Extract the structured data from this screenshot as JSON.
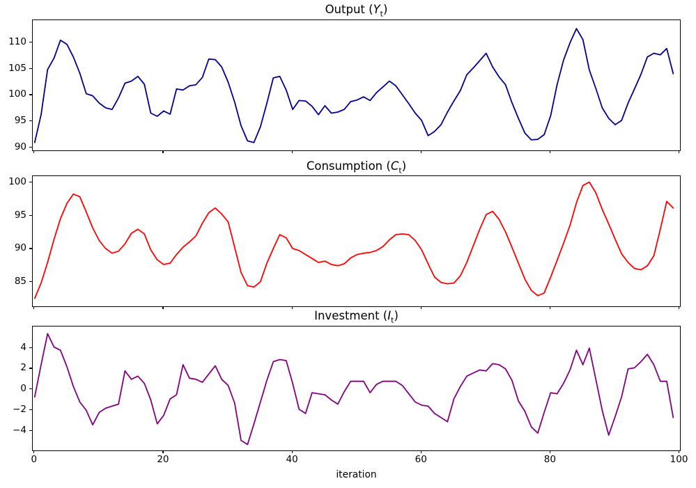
{
  "figure": {
    "background": "#ffffff",
    "spine_color": "#000000",
    "tick_color": "#000000"
  },
  "xlabel": "iteration",
  "chart_data": [
    {
      "type": "line",
      "title_parts": {
        "prefix": "Output (",
        "var": "Y",
        "sub": "t",
        "suffix": ")"
      },
      "color": "#00008b",
      "line_width": 1.8,
      "x_range": [
        0,
        99
      ],
      "xlim": [
        -0.3,
        100.05
      ],
      "ylim": [
        89.5,
        114.3
      ],
      "yticks": [
        90,
        95,
        100,
        105,
        110
      ],
      "ytick_labels": [
        "90",
        "95",
        "100",
        "105",
        "110"
      ],
      "xticks": [
        0,
        20,
        40,
        60,
        80,
        100
      ],
      "xtick_labels": [],
      "grid": false,
      "values": [
        91.0,
        96.3,
        104.9,
        107.1,
        110.5,
        109.7,
        107.3,
        104.2,
        100.3,
        99.9,
        98.5,
        97.6,
        97.3,
        99.5,
        102.3,
        102.7,
        103.6,
        102.1,
        96.6,
        96.0,
        97.0,
        96.4,
        101.2,
        101.0,
        101.8,
        102.0,
        103.4,
        106.9,
        106.8,
        105.4,
        102.5,
        98.7,
        94.2,
        91.3,
        91.0,
        94.0,
        98.5,
        103.3,
        103.6,
        101.0,
        97.3,
        99.0,
        98.9,
        97.9,
        96.3,
        98.0,
        96.6,
        96.8,
        97.3,
        98.8,
        99.1,
        99.7,
        99.0,
        100.5,
        101.6,
        102.7,
        101.8,
        100.1,
        98.4,
        96.6,
        95.2,
        92.3,
        93.1,
        94.4,
        96.8,
        98.9,
        100.9,
        103.9,
        105.2,
        106.6,
        108.0,
        105.4,
        103.5,
        102.0,
        98.6,
        95.6,
        92.8,
        91.5,
        91.6,
        92.5,
        96.1,
        102.0,
        106.7,
        110.0,
        112.7,
        110.6,
        104.8,
        101.3,
        97.6,
        95.6,
        94.4,
        95.2,
        98.5,
        101.2,
        104.0,
        107.3,
        108.0,
        107.7,
        108.9,
        104.1
      ]
    },
    {
      "type": "line",
      "title_parts": {
        "prefix": "Consumption (",
        "var": "C",
        "sub": "t",
        "suffix": ")"
      },
      "color": "#ff0000",
      "line_width": 1.8,
      "x_range": [
        0,
        99
      ],
      "xlim": [
        -0.3,
        100.05
      ],
      "ylim": [
        81.4,
        101.0
      ],
      "yticks": [
        85,
        90,
        95,
        100
      ],
      "ytick_labels": [
        "85",
        "90",
        "95",
        "100"
      ],
      "xticks": [
        0,
        20,
        40,
        60,
        80,
        100
      ],
      "xtick_labels": [],
      "grid": false,
      "values": [
        82.6,
        84.9,
        88.0,
        91.5,
        94.6,
        96.9,
        98.3,
        97.9,
        95.6,
        93.2,
        91.3,
        90.1,
        89.4,
        89.7,
        90.8,
        92.4,
        93.0,
        92.3,
        89.9,
        88.4,
        87.7,
        87.9,
        89.2,
        90.3,
        91.1,
        92.0,
        93.9,
        95.5,
        96.2,
        95.3,
        94.1,
        90.3,
        86.5,
        84.5,
        84.3,
        85.1,
        87.9,
        90.1,
        92.2,
        91.7,
        90.1,
        89.8,
        89.2,
        88.6,
        88.0,
        88.2,
        87.7,
        87.5,
        87.8,
        88.7,
        89.2,
        89.4,
        89.5,
        89.8,
        90.4,
        91.4,
        92.2,
        92.3,
        92.2,
        91.3,
        89.9,
        87.8,
        85.8,
        85.0,
        84.8,
        84.9,
        86.0,
        88.0,
        90.5,
        93.0,
        95.2,
        95.7,
        94.5,
        92.6,
        90.3,
        87.9,
        85.5,
        83.8,
        83.0,
        83.4,
        85.8,
        88.3,
        90.9,
        93.6,
        97.0,
        99.6,
        100.1,
        98.5,
        96.0,
        93.8,
        91.5,
        89.3,
        88.0,
        87.1,
        86.9,
        87.5,
        89.0,
        93.0,
        97.2,
        96.2
      ]
    },
    {
      "type": "line",
      "title_parts": {
        "prefix": "Investment (",
        "var": "I",
        "sub": "t",
        "suffix": ")"
      },
      "color": "#800080",
      "line_width": 1.8,
      "x_range": [
        0,
        99
      ],
      "xlim": [
        -0.3,
        100.05
      ],
      "ylim": [
        -5.87,
        6.09
      ],
      "yticks": [
        -4,
        -2,
        0,
        2,
        4
      ],
      "ytick_labels": [
        "−4",
        "−2",
        "0",
        "2",
        "4"
      ],
      "xticks": [
        0,
        20,
        40,
        60,
        80,
        100
      ],
      "xtick_labels": [
        "0",
        "20",
        "40",
        "60",
        "80",
        "100"
      ],
      "xlabel": "iteration",
      "grid": false,
      "values": [
        -0.7,
        2.4,
        5.4,
        4.1,
        3.8,
        2.2,
        0.3,
        -1.2,
        -2.0,
        -3.4,
        -2.2,
        -1.8,
        -1.6,
        -1.4,
        1.8,
        1.0,
        1.3,
        0.6,
        -1.0,
        -3.3,
        -2.5,
        -0.9,
        -0.5,
        2.4,
        1.1,
        1.0,
        0.7,
        1.5,
        2.3,
        1.0,
        0.4,
        -1.3,
        -4.9,
        -5.3,
        -3.3,
        -1.2,
        0.9,
        2.7,
        2.9,
        2.8,
        0.6,
        -1.9,
        -2.3,
        -0.3,
        -0.4,
        -0.5,
        -1.0,
        -1.4,
        -0.2,
        0.8,
        0.8,
        0.8,
        -0.3,
        0.5,
        0.8,
        0.8,
        0.8,
        0.4,
        -0.4,
        -1.2,
        -1.5,
        -1.6,
        -2.3,
        -2.7,
        -3.1,
        -0.9,
        0.3,
        1.3,
        1.6,
        1.9,
        1.8,
        2.5,
        2.4,
        2.0,
        0.9,
        -1.1,
        -2.1,
        -3.6,
        -4.2,
        -2.2,
        -0.3,
        -0.4,
        0.6,
        1.9,
        3.8,
        2.4,
        4.0,
        1.0,
        -2.0,
        -4.4,
        -2.6,
        -0.7,
        2.0,
        2.1,
        2.7,
        3.4,
        2.4,
        0.8,
        0.8,
        -2.7
      ]
    }
  ]
}
